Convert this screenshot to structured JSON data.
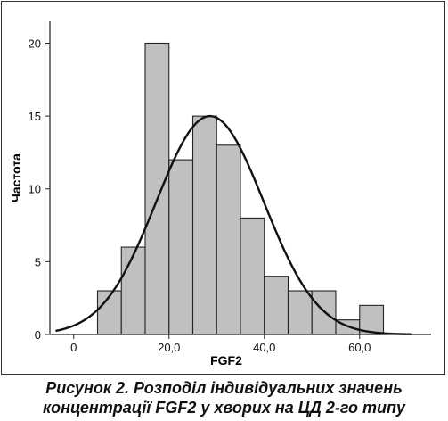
{
  "chart_data": {
    "type": "histogram",
    "xlabel": "FGF2",
    "ylabel": "Частота",
    "xlim": [
      -5,
      75
    ],
    "ylim": [
      0,
      21.5
    ],
    "x_ticks": [
      0,
      20,
      40,
      60
    ],
    "x_tick_labels": [
      "0",
      "20,0",
      "40,0",
      "60,0"
    ],
    "y_ticks": [
      0,
      5,
      10,
      15,
      20
    ],
    "y_tick_labels": [
      "0",
      "5",
      "10",
      "15",
      "20"
    ],
    "bin_width": 5,
    "bins": [
      {
        "start": 5,
        "end": 10,
        "count": 3
      },
      {
        "start": 10,
        "end": 15,
        "count": 6
      },
      {
        "start": 15,
        "end": 20,
        "count": 20
      },
      {
        "start": 20,
        "end": 25,
        "count": 12
      },
      {
        "start": 25,
        "end": 30,
        "count": 15
      },
      {
        "start": 30,
        "end": 35,
        "count": 13
      },
      {
        "start": 35,
        "end": 40,
        "count": 8
      },
      {
        "start": 40,
        "end": 45,
        "count": 4
      },
      {
        "start": 45,
        "end": 50,
        "count": 3
      },
      {
        "start": 50,
        "end": 55,
        "count": 3
      },
      {
        "start": 55,
        "end": 60,
        "count": 1
      },
      {
        "start": 60,
        "end": 65,
        "count": 2
      }
    ],
    "normal_curve": {
      "mean": 28.6,
      "sd": 11.3,
      "peak": 15
    },
    "bar_color": "#c0c0c0",
    "bar_edge_color": "#222222",
    "curve_color": "#111111"
  },
  "caption": {
    "line1": "Рисунок 2.  Розподіл індивідуальних значень",
    "line2": "концентрації FGF2 у хворих на ЦД 2-го типу"
  }
}
